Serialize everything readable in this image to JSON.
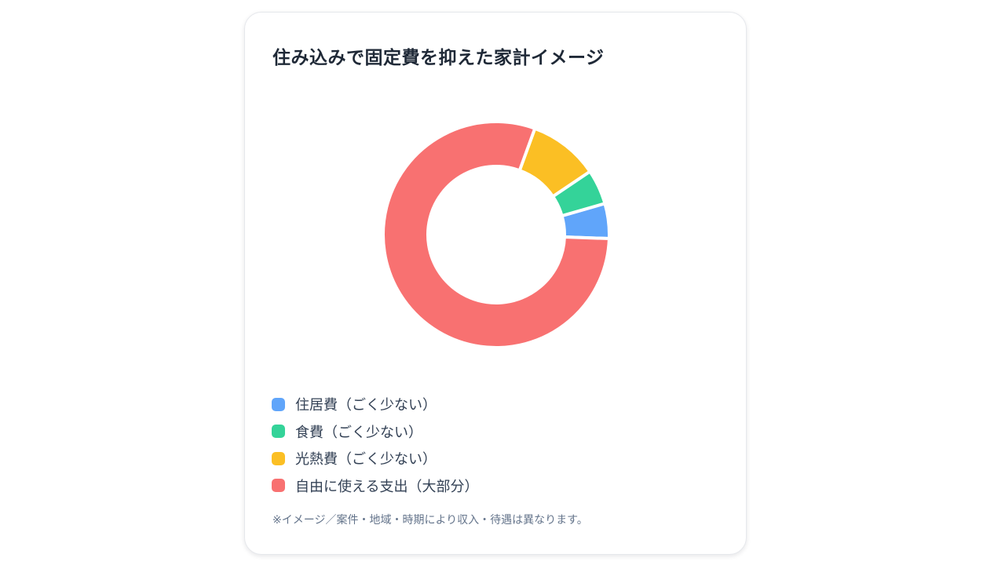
{
  "chart_data": {
    "type": "pie",
    "title": "住み込みで固定費を抑えた家計イメージ",
    "categories": [
      "住居費（ごく少ない）",
      "食費（ごく少ない）",
      "光熱費（ごく少ない）",
      "自由に使える支出（大部分）"
    ],
    "values": [
      5,
      5,
      10,
      80
    ],
    "colors": [
      "#60a5fa",
      "#34d399",
      "#fbbf24",
      "#f87171"
    ],
    "donut": true,
    "legend_position": "bottom",
    "note": "※イメージ／案件・地域・時期により収入・待遇は異なります。"
  }
}
